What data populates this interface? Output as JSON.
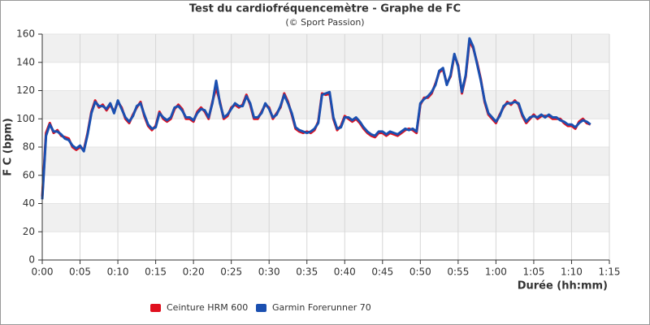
{
  "chart_data": {
    "type": "line",
    "title": "Test du cardiofréquencemètre - Graphe de FC",
    "subtitle": "(© Sport Passion)",
    "x_label": "Durée (hh:mm)",
    "y_label": "F C (bpm)",
    "xlim": [
      0,
      75
    ],
    "ylim": [
      0,
      160
    ],
    "xticks": [
      {
        "value": 0,
        "label": "0:00"
      },
      {
        "value": 5,
        "label": "0:05"
      },
      {
        "value": 10,
        "label": "0:10"
      },
      {
        "value": 15,
        "label": "0:15"
      },
      {
        "value": 20,
        "label": "0:20"
      },
      {
        "value": 25,
        "label": "0:25"
      },
      {
        "value": 30,
        "label": "0:30"
      },
      {
        "value": 35,
        "label": "0:35"
      },
      {
        "value": 40,
        "label": "0:40"
      },
      {
        "value": 45,
        "label": "0:45"
      },
      {
        "value": 50,
        "label": "0:50"
      },
      {
        "value": 55,
        "label": "0:55"
      },
      {
        "value": 60,
        "label": "1:00"
      },
      {
        "value": 65,
        "label": "1:05"
      },
      {
        "value": 70,
        "label": "1:10"
      },
      {
        "value": 75,
        "label": "1:15"
      }
    ],
    "yticks": [
      0,
      20,
      40,
      60,
      80,
      100,
      120,
      140,
      160
    ],
    "grid": true,
    "alternate_bands": true,
    "legend": "bottom",
    "x": [
      0,
      0.5,
      1,
      1.5,
      2,
      2.5,
      3,
      3.5,
      4,
      4.5,
      5,
      5.5,
      6,
      6.5,
      7,
      7.5,
      8,
      8.5,
      9,
      9.5,
      10,
      10.5,
      11,
      11.5,
      12,
      12.5,
      13,
      13.5,
      14,
      14.5,
      15,
      15.5,
      16,
      16.5,
      17,
      17.5,
      18,
      18.5,
      19,
      19.5,
      20,
      20.5,
      21,
      21.5,
      22,
      22.5,
      23,
      23.5,
      24,
      24.5,
      25,
      25.5,
      26,
      26.5,
      27,
      27.5,
      28,
      28.5,
      29,
      29.5,
      30,
      30.5,
      31,
      31.5,
      32,
      32.5,
      33,
      33.5,
      34,
      34.5,
      35,
      35.5,
      36,
      36.5,
      37,
      37.5,
      38,
      38.5,
      39,
      39.5,
      40,
      40.5,
      41,
      41.5,
      42,
      42.5,
      43,
      43.5,
      44,
      44.5,
      45,
      45.5,
      46,
      46.5,
      47,
      47.5,
      48,
      48.5,
      49,
      49.5,
      50,
      50.5,
      51,
      51.5,
      52,
      52.5,
      53,
      53.5,
      54,
      54.5,
      55,
      55.5,
      56,
      56.5,
      57,
      57.5,
      58,
      58.5,
      59,
      59.5,
      60,
      60.5,
      61,
      61.5,
      62,
      62.5,
      63,
      63.5,
      64,
      64.5,
      65,
      65.5,
      66,
      66.5,
      67,
      67.5,
      68,
      68.5,
      69,
      69.5,
      70,
      70.5,
      71,
      71.5,
      72,
      72.5
    ],
    "series": [
      {
        "name": "Ceinture HRM 600",
        "color": "#e0101e",
        "values": [
          45,
          90,
          97,
          90,
          92,
          88,
          87,
          86,
          80,
          78,
          80,
          78,
          90,
          105,
          113,
          108,
          110,
          106,
          110,
          105,
          112,
          108,
          100,
          97,
          103,
          108,
          112,
          102,
          95,
          92,
          95,
          105,
          100,
          98,
          100,
          107,
          110,
          107,
          100,
          100,
          98,
          105,
          108,
          105,
          100,
          112,
          122,
          112,
          100,
          102,
          108,
          110,
          108,
          110,
          117,
          110,
          100,
          100,
          105,
          110,
          108,
          100,
          104,
          108,
          118,
          112,
          103,
          93,
          91,
          90,
          91,
          90,
          92,
          98,
          118,
          117,
          118,
          100,
          92,
          95,
          102,
          100,
          98,
          100,
          97,
          93,
          90,
          88,
          87,
          90,
          90,
          88,
          90,
          89,
          88,
          90,
          92,
          93,
          92,
          90,
          110,
          115,
          115,
          118,
          125,
          133,
          135,
          125,
          130,
          145,
          138,
          118,
          130,
          155,
          150,
          140,
          128,
          112,
          103,
          100,
          97,
          103,
          108,
          112,
          110,
          113,
          110,
          102,
          97,
          100,
          103,
          100,
          102,
          102,
          102,
          100,
          100,
          100,
          97,
          95,
          95,
          93,
          98,
          100,
          97,
          96
        ]
      },
      {
        "name": "Garmin Forerunner 70",
        "color": "#1a4fb0",
        "values": [
          43,
          88,
          96,
          91,
          91,
          89,
          86,
          85,
          81,
          79,
          81,
          77,
          89,
          104,
          112,
          109,
          109,
          107,
          111,
          104,
          113,
          107,
          101,
          98,
          102,
          109,
          111,
          103,
          96,
          93,
          94,
          104,
          101,
          99,
          101,
          108,
          109,
          106,
          101,
          101,
          99,
          104,
          107,
          106,
          101,
          111,
          127,
          111,
          101,
          103,
          107,
          111,
          109,
          109,
          116,
          111,
          101,
          101,
          104,
          111,
          107,
          101,
          103,
          109,
          117,
          111,
          104,
          94,
          92,
          91,
          90,
          91,
          93,
          97,
          117,
          118,
          119,
          101,
          93,
          94,
          101,
          101,
          99,
          101,
          98,
          94,
          91,
          89,
          88,
          91,
          91,
          89,
          91,
          90,
          89,
          91,
          93,
          92,
          93,
          91,
          111,
          114,
          116,
          119,
          124,
          134,
          136,
          124,
          131,
          146,
          137,
          119,
          131,
          157,
          151,
          139,
          127,
          113,
          104,
          101,
          98,
          102,
          109,
          111,
          111,
          112,
          111,
          103,
          98,
          101,
          102,
          101,
          103,
          101,
          103,
          101,
          101,
          99,
          98,
          96,
          96,
          94,
          97,
          99,
          98,
          96
        ]
      }
    ]
  }
}
